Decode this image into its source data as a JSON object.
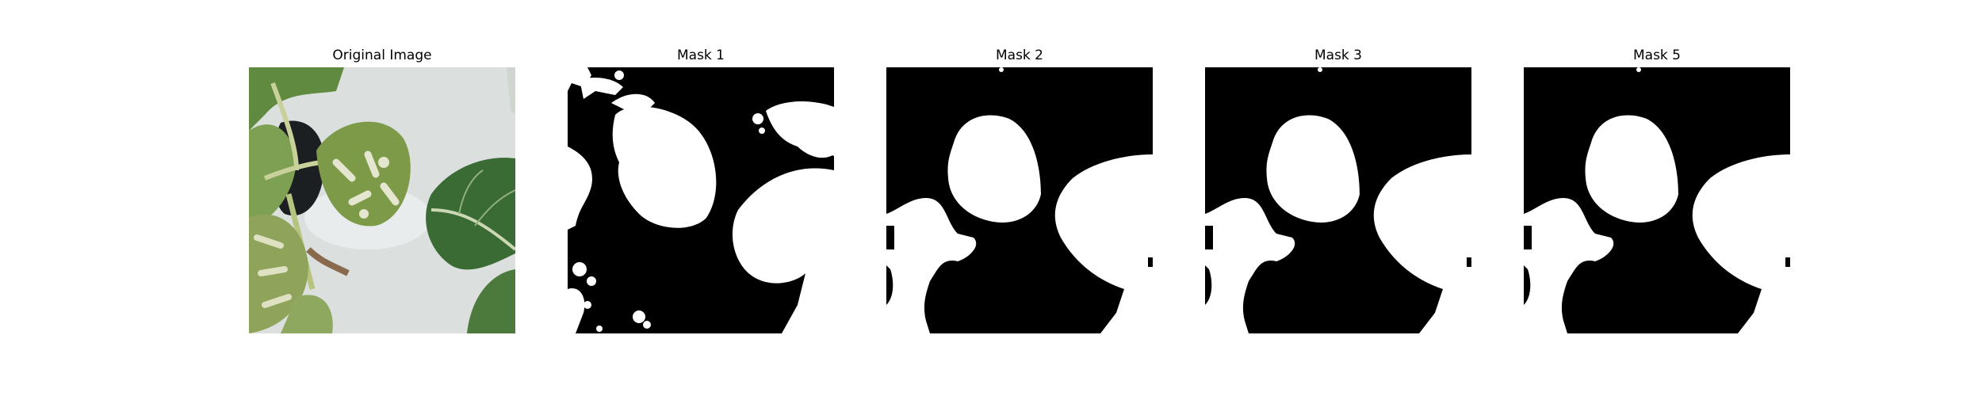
{
  "panels": [
    {
      "title": "Original Image",
      "kind": "photo",
      "subject": "leafy green plants (bok choy) growing in a hydroponic tray"
    },
    {
      "title": "Mask 1",
      "kind": "mask",
      "variant": "noisy"
    },
    {
      "title": "Mask 2",
      "kind": "mask",
      "variant": "smooth"
    },
    {
      "title": "Mask 3",
      "kind": "mask",
      "variant": "smooth"
    },
    {
      "title": "Mask 5",
      "kind": "mask",
      "variant": "smooth"
    }
  ],
  "colors": {
    "background": "#ffffff",
    "mask_on": "#ffffff",
    "mask_off": "#000000",
    "tray": "#dfe3e3",
    "leaf_dark": "#2f5a2c",
    "leaf_mid": "#5f8a3f",
    "leaf_light": "#aebf7a",
    "leaf_variegated": "#d8dcc0",
    "pot_dark": "#1b1f22"
  }
}
